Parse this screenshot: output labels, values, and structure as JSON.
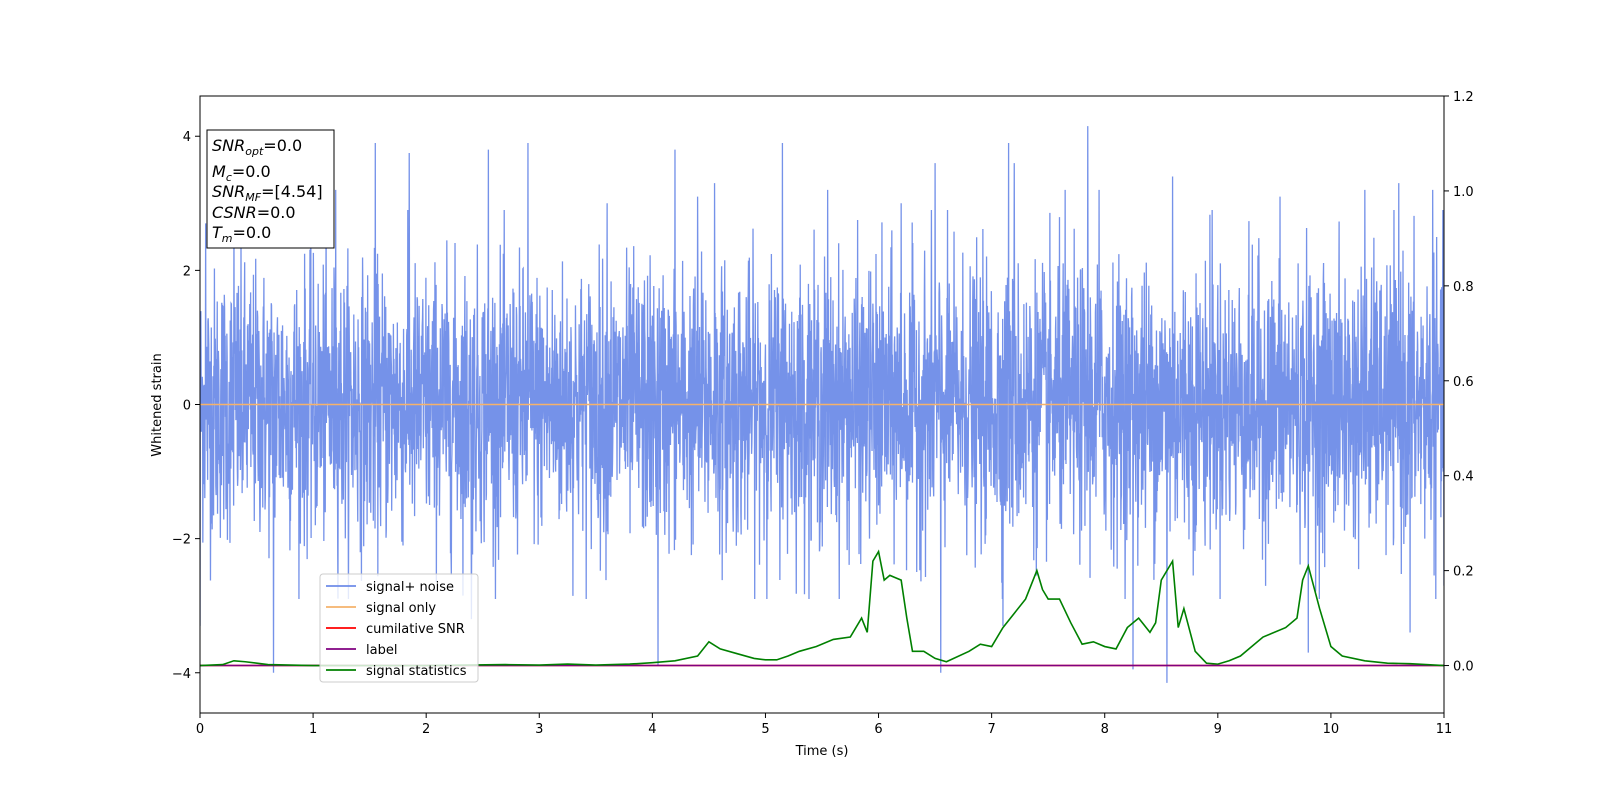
{
  "chart_data": {
    "type": "line",
    "xlabel": "Time (s)",
    "ylabel": "Whitened strain",
    "xlim": [
      0,
      11
    ],
    "ylim": [
      -4.6,
      4.6
    ],
    "y2lim": [
      -0.1,
      1.2
    ],
    "x_ticks": [
      0,
      1,
      2,
      3,
      4,
      5,
      6,
      7,
      8,
      9,
      10,
      11
    ],
    "y_ticks": [
      -4,
      -2,
      0,
      2,
      4
    ],
    "y2_ticks": [
      0.0,
      0.2,
      0.4,
      0.6,
      0.8,
      1.0,
      1.2
    ],
    "y2_tick_labels": [
      "0.0",
      "0.2",
      "0.4",
      "0.6",
      "0.8",
      "1.0",
      "1.2"
    ],
    "legend_position": "lower-left",
    "grid": false,
    "info_box": {
      "lines": [
        {
          "base": "SNR",
          "sub": "opt",
          "rest": "=0.0"
        },
        {
          "base": "M",
          "sub": "c",
          "rest": "=0.0"
        },
        {
          "base": "SNR",
          "sub": "MF",
          "rest": "=[4.54]"
        },
        {
          "base": "CSNR",
          "sub": "",
          "rest": "=0.0"
        },
        {
          "base": "T",
          "sub": "m",
          "rest": "=0.0"
        }
      ]
    },
    "series": [
      {
        "name": "signal+ noise",
        "color": "#6e8ce8",
        "axis": "left",
        "description_values": {
          "typical_amplitude": 1.0,
          "peak_max": 4.15,
          "peak_min": -4.15
        },
        "extremes": [
          [
            0.0,
            -3.3
          ],
          [
            0.05,
            2.7
          ],
          [
            0.3,
            2.8
          ],
          [
            0.65,
            -4.0
          ],
          [
            1.2,
            3.2
          ],
          [
            1.55,
            3.9
          ],
          [
            1.85,
            3.75
          ],
          [
            2.4,
            -3.2
          ],
          [
            2.55,
            3.8
          ],
          [
            2.9,
            3.9
          ],
          [
            3.6,
            3.0
          ],
          [
            4.05,
            -3.9
          ],
          [
            4.2,
            3.8
          ],
          [
            4.4,
            3.1
          ],
          [
            4.55,
            3.3
          ],
          [
            5.15,
            3.9
          ],
          [
            5.55,
            3.2
          ],
          [
            6.2,
            3.0
          ],
          [
            6.5,
            3.6
          ],
          [
            6.55,
            -4.0
          ],
          [
            7.1,
            -3.3
          ],
          [
            7.15,
            3.9
          ],
          [
            7.2,
            3.6
          ],
          [
            7.65,
            3.2
          ],
          [
            7.85,
            4.15
          ],
          [
            7.95,
            3.2
          ],
          [
            8.25,
            -3.95
          ],
          [
            8.55,
            -4.15
          ],
          [
            8.6,
            3.4
          ],
          [
            8.95,
            2.9
          ],
          [
            9.55,
            3.1
          ],
          [
            9.8,
            -3.7
          ],
          [
            10.3,
            3.2
          ],
          [
            10.6,
            3.3
          ],
          [
            10.7,
            -3.4
          ],
          [
            10.9,
            3.2
          ],
          [
            11.0,
            -2.7
          ]
        ]
      },
      {
        "name": "signal only",
        "color": "#f5b26b",
        "axis": "left",
        "x": [
          0,
          11
        ],
        "y": [
          0.0,
          0.0
        ]
      },
      {
        "name": "cumilative SNR",
        "color": "#ff0000",
        "axis": "right",
        "x": [
          0,
          11
        ],
        "y": [
          0.0,
          0.0
        ]
      },
      {
        "name": "label",
        "color": "#800080",
        "axis": "right",
        "x": [
          0,
          11
        ],
        "y": [
          0.0,
          0.0
        ]
      },
      {
        "name": "signal statistics",
        "color": "#008000",
        "axis": "right",
        "x": [
          0.0,
          0.2,
          0.3,
          0.4,
          0.6,
          1.0,
          2.0,
          2.7,
          3.0,
          3.25,
          3.5,
          3.8,
          4.0,
          4.2,
          4.4,
          4.5,
          4.6,
          4.75,
          4.9,
          5.0,
          5.1,
          5.2,
          5.3,
          5.45,
          5.6,
          5.75,
          5.85,
          5.9,
          5.95,
          6.0,
          6.05,
          6.1,
          6.15,
          6.2,
          6.25,
          6.3,
          6.4,
          6.5,
          6.6,
          6.8,
          6.9,
          7.0,
          7.1,
          7.2,
          7.3,
          7.4,
          7.45,
          7.5,
          7.6,
          7.7,
          7.8,
          7.9,
          8.0,
          8.1,
          8.2,
          8.3,
          8.4,
          8.45,
          8.5,
          8.6,
          8.65,
          8.7,
          8.8,
          8.9,
          9.0,
          9.1,
          9.2,
          9.3,
          9.4,
          9.6,
          9.7,
          9.75,
          9.8,
          9.9,
          10.0,
          10.1,
          10.3,
          10.5,
          10.7,
          11.0
        ],
        "y": [
          0.0,
          0.002,
          0.01,
          0.008,
          0.002,
          0.0,
          0.0,
          0.002,
          0.001,
          0.003,
          0.001,
          0.003,
          0.006,
          0.01,
          0.02,
          0.05,
          0.035,
          0.025,
          0.015,
          0.012,
          0.012,
          0.02,
          0.03,
          0.04,
          0.055,
          0.06,
          0.1,
          0.07,
          0.22,
          0.24,
          0.18,
          0.19,
          0.185,
          0.18,
          0.1,
          0.03,
          0.03,
          0.015,
          0.008,
          0.03,
          0.045,
          0.04,
          0.08,
          0.11,
          0.14,
          0.2,
          0.16,
          0.14,
          0.14,
          0.09,
          0.045,
          0.05,
          0.04,
          0.035,
          0.08,
          0.1,
          0.07,
          0.09,
          0.18,
          0.22,
          0.08,
          0.12,
          0.03,
          0.005,
          0.003,
          0.01,
          0.02,
          0.04,
          0.06,
          0.08,
          0.1,
          0.18,
          0.21,
          0.12,
          0.04,
          0.02,
          0.01,
          0.005,
          0.004,
          0.0
        ]
      }
    ]
  }
}
